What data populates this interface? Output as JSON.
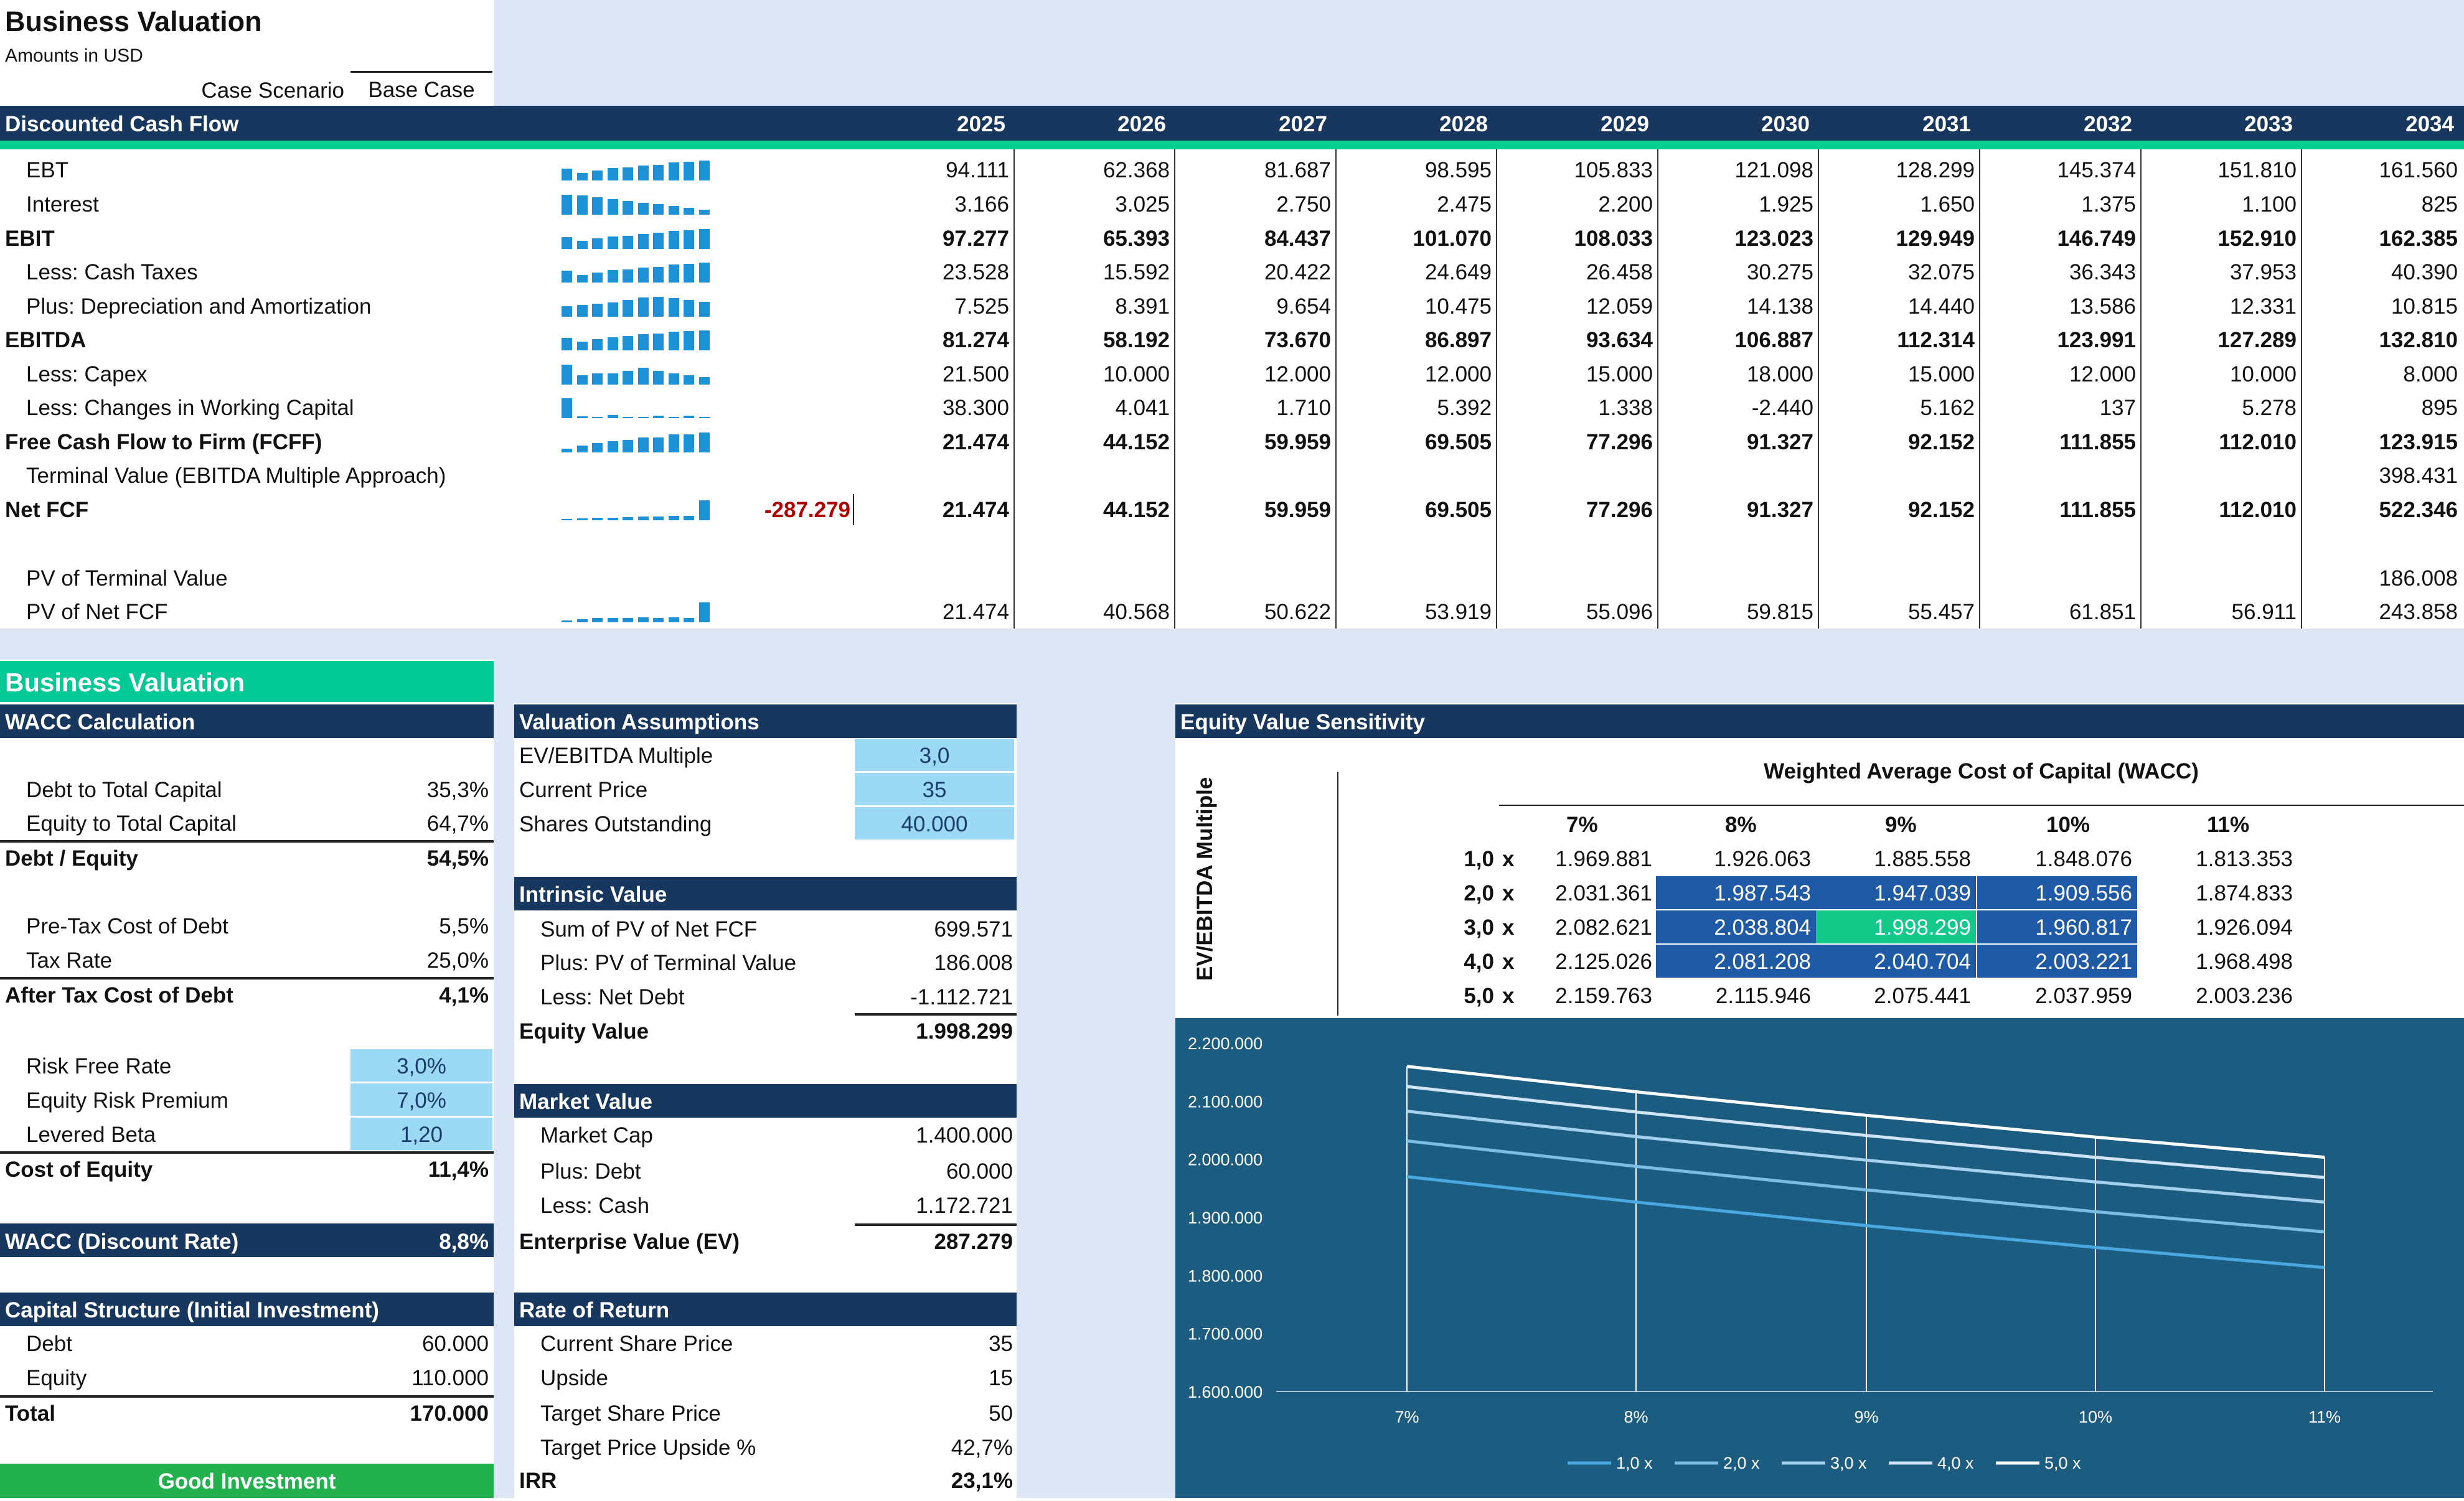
{
  "header": {
    "title": "Business Valuation",
    "subtitle": "Amounts in USD",
    "case_label": "Case Scenario",
    "case_value": "Base Case"
  },
  "dcf": {
    "title": "Discounted Cash Flow",
    "years": [
      "2025",
      "2026",
      "2027",
      "2028",
      "2029",
      "2030",
      "2031",
      "2032",
      "2033",
      "2034"
    ],
    "rows": [
      {
        "label": "EBT",
        "bold": false,
        "indent": true,
        "initial": "",
        "values": [
          "94.111",
          "62.368",
          "81.687",
          "98.595",
          "105.833",
          "121.098",
          "128.299",
          "145.374",
          "151.810",
          "161.560"
        ],
        "spark": [
          94111,
          62368,
          81687,
          98595,
          105833,
          121098,
          128299,
          145374,
          151810,
          161560
        ]
      },
      {
        "label": "Interest",
        "bold": false,
        "indent": true,
        "initial": "",
        "values": [
          "3.166",
          "3.025",
          "2.750",
          "2.475",
          "2.200",
          "1.925",
          "1.650",
          "1.375",
          "1.100",
          "825"
        ],
        "spark": [
          3166,
          3025,
          2750,
          2475,
          2200,
          1925,
          1650,
          1375,
          1100,
          825
        ]
      },
      {
        "label": "EBIT",
        "bold": true,
        "indent": false,
        "initial": "",
        "values": [
          "97.277",
          "65.393",
          "84.437",
          "101.070",
          "108.033",
          "123.023",
          "129.949",
          "146.749",
          "152.910",
          "162.385"
        ],
        "spark": [
          97277,
          65393,
          84437,
          101070,
          108033,
          123023,
          129949,
          146749,
          152910,
          162385
        ]
      },
      {
        "label": "Less: Cash Taxes",
        "bold": false,
        "indent": true,
        "initial": "",
        "values": [
          "23.528",
          "15.592",
          "20.422",
          "24.649",
          "26.458",
          "30.275",
          "32.075",
          "36.343",
          "37.953",
          "40.390"
        ],
        "spark": [
          23528,
          15592,
          20422,
          24649,
          26458,
          30275,
          32075,
          36343,
          37953,
          40390
        ]
      },
      {
        "label": "Plus: Depreciation and Amortization",
        "bold": false,
        "indent": true,
        "initial": "",
        "values": [
          "7.525",
          "8.391",
          "9.654",
          "10.475",
          "12.059",
          "14.138",
          "14.440",
          "13.586",
          "12.331",
          "10.815"
        ],
        "spark": [
          7525,
          8391,
          9654,
          10475,
          12059,
          14138,
          14440,
          13586,
          12331,
          10815
        ]
      },
      {
        "label": "EBITDA",
        "bold": true,
        "indent": false,
        "initial": "",
        "values": [
          "81.274",
          "58.192",
          "73.670",
          "86.897",
          "93.634",
          "106.887",
          "112.314",
          "123.991",
          "127.289",
          "132.810"
        ],
        "spark": [
          81274,
          58192,
          73670,
          86897,
          93634,
          106887,
          112314,
          123991,
          127289,
          132810
        ]
      },
      {
        "label": "Less: Capex",
        "bold": false,
        "indent": true,
        "initial": "",
        "values": [
          "21.500",
          "10.000",
          "12.000",
          "12.000",
          "15.000",
          "18.000",
          "15.000",
          "12.000",
          "10.000",
          "8.000"
        ],
        "spark": [
          21500,
          10000,
          12000,
          12000,
          15000,
          18000,
          15000,
          12000,
          10000,
          8000
        ]
      },
      {
        "label": "Less: Changes in Working Capital",
        "bold": false,
        "indent": true,
        "initial": "",
        "values": [
          "38.300",
          "4.041",
          "1.710",
          "5.392",
          "1.338",
          "-2.440",
          "5.162",
          "137",
          "5.278",
          "895"
        ],
        "spark": [
          38300,
          4041,
          1710,
          5392,
          1338,
          -2440,
          5162,
          137,
          5278,
          895
        ]
      },
      {
        "label": "Free Cash Flow to Firm (FCFF)",
        "bold": true,
        "indent": false,
        "initial": "",
        "values": [
          "21.474",
          "44.152",
          "59.959",
          "69.505",
          "77.296",
          "91.327",
          "92.152",
          "111.855",
          "112.010",
          "123.915"
        ],
        "spark": [
          21474,
          44152,
          59959,
          69505,
          77296,
          91327,
          92152,
          111855,
          112010,
          123915
        ]
      },
      {
        "label": "Terminal Value (EBITDA Multiple Approach)",
        "bold": false,
        "indent": true,
        "initial": "",
        "values": [
          "",
          "",
          "",
          "",
          "",
          "",
          "",
          "",
          "",
          "398.431"
        ],
        "spark": null
      },
      {
        "label": "Net FCF",
        "bold": true,
        "indent": false,
        "initial": "-287.279",
        "values": [
          "21.474",
          "44.152",
          "59.959",
          "69.505",
          "77.296",
          "91.327",
          "92.152",
          "111.855",
          "112.010",
          "522.346"
        ],
        "spark": [
          21474,
          44152,
          59959,
          69505,
          77296,
          91327,
          92152,
          111855,
          112010,
          522346
        ]
      },
      {
        "label": "",
        "bold": false,
        "indent": false,
        "initial": "",
        "values": [
          "",
          "",
          "",
          "",
          "",
          "",
          "",
          "",
          "",
          ""
        ],
        "spark": null
      },
      {
        "label": "PV of Terminal Value",
        "bold": false,
        "indent": true,
        "initial": "",
        "values": [
          "",
          "",
          "",
          "",
          "",
          "",
          "",
          "",
          "",
          "186.008"
        ],
        "spark": null
      },
      {
        "label": "PV of Net FCF",
        "bold": false,
        "indent": true,
        "initial": "",
        "values": [
          "21.474",
          "40.568",
          "50.622",
          "53.919",
          "55.096",
          "59.815",
          "55.457",
          "61.851",
          "56.911",
          "243.858"
        ],
        "spark": [
          21474,
          40568,
          50622,
          53919,
          55096,
          59815,
          55457,
          61851,
          56911,
          243858
        ]
      }
    ]
  },
  "section_title": "Business Valuation",
  "wacc": {
    "title": "WACC Calculation",
    "debt_to_capital": {
      "label": "Debt to Total Capital",
      "value": "35,3%"
    },
    "equity_to_capital": {
      "label": "Equity to Total Capital",
      "value": "64,7%"
    },
    "debt_equity": {
      "label": "Debt / Equity",
      "value": "54,5%"
    },
    "pretax_cost_debt": {
      "label": "Pre-Tax Cost of Debt",
      "value": "5,5%"
    },
    "tax_rate": {
      "label": "Tax Rate",
      "value": "25,0%"
    },
    "after_tax_cost_debt": {
      "label": "After Tax Cost of Debt",
      "value": "4,1%"
    },
    "risk_free": {
      "label": "Risk Free Rate",
      "value": "3,0%"
    },
    "erp": {
      "label": "Equity Risk Premium",
      "value": "7,0%"
    },
    "beta": {
      "label": "Levered Beta",
      "value": "1,20"
    },
    "cost_equity": {
      "label": "Cost of Equity",
      "value": "11,4%"
    },
    "wacc_rate": {
      "label": "WACC (Discount Rate)",
      "value": "8,8%"
    }
  },
  "capital": {
    "title": "Capital Structure (Initial Investment)",
    "debt": {
      "label": "Debt",
      "value": "60.000"
    },
    "equity": {
      "label": "Equity",
      "value": "110.000"
    },
    "total": {
      "label": "Total",
      "value": "170.000"
    },
    "verdict": "Good Investment"
  },
  "assumptions": {
    "title": "Valuation Assumptions",
    "multiple": {
      "label": "EV/EBITDA Multiple",
      "value": "3,0"
    },
    "price": {
      "label": "Current Price",
      "value": "35"
    },
    "shares": {
      "label": "Shares Outstanding",
      "value": "40.000"
    }
  },
  "intrinsic": {
    "title": "Intrinsic Value",
    "sum_pv": {
      "label": "Sum of PV of Net FCF",
      "value": "699.571"
    },
    "pv_tv": {
      "label": "Plus: PV of Terminal Value",
      "value": "186.008"
    },
    "net_debt": {
      "label": "Less: Net Debt",
      "value": "-1.112.721"
    },
    "equity_value": {
      "label": "Equity Value",
      "value": "1.998.299"
    }
  },
  "market": {
    "title": "Market Value",
    "cap": {
      "label": "Market Cap",
      "value": "1.400.000"
    },
    "debt": {
      "label": "Plus: Debt",
      "value": "60.000"
    },
    "cash": {
      "label": "Less: Cash",
      "value": "1.172.721"
    },
    "ev": {
      "label": "Enterprise Value (EV)",
      "value": "287.279"
    }
  },
  "returns": {
    "title": "Rate of Return",
    "current": {
      "label": "Current Share Price",
      "value": "35"
    },
    "upside": {
      "label": "Upside",
      "value": "15"
    },
    "target": {
      "label": "Target Share Price",
      "value": "50"
    },
    "target_pct": {
      "label": "Target Price Upside %",
      "value": "42,7%"
    },
    "irr": {
      "label": "IRR",
      "value": "23,1%"
    }
  },
  "sensitivity": {
    "title": "Equity Value Sensitivity",
    "col_title": "Weighted Average Cost of Capital (WACC)",
    "row_title": "EV/EBITDA Multiple",
    "waccs": [
      "7%",
      "8%",
      "9%",
      "10%",
      "11%"
    ],
    "multiples": [
      "1,0",
      "2,0",
      "3,0",
      "4,0",
      "5,0"
    ],
    "x_suffix": "x",
    "grid": [
      [
        "1.969.881",
        "1.926.063",
        "1.885.558",
        "1.848.076",
        "1.813.353"
      ],
      [
        "2.031.361",
        "1.987.543",
        "1.947.039",
        "1.909.556",
        "1.874.833"
      ],
      [
        "2.082.621",
        "2.038.804",
        "1.998.299",
        "1.960.817",
        "1.926.094"
      ],
      [
        "2.125.026",
        "2.081.208",
        "2.040.704",
        "2.003.221",
        "1.968.498"
      ],
      [
        "2.159.763",
        "2.115.946",
        "2.075.441",
        "2.037.959",
        "2.003.236"
      ]
    ]
  },
  "chart_data": {
    "type": "line",
    "categories": [
      "7%",
      "8%",
      "9%",
      "10%",
      "11%"
    ],
    "series": [
      {
        "name": "1,0 x",
        "values": [
          1969881,
          1926063,
          1885558,
          1848076,
          1813353
        ]
      },
      {
        "name": "2,0 x",
        "values": [
          2031361,
          1987543,
          1947039,
          1909556,
          1874833
        ]
      },
      {
        "name": "3,0 x",
        "values": [
          2082621,
          2038804,
          1998299,
          1960817,
          1926094
        ]
      },
      {
        "name": "4,0 x",
        "values": [
          2125026,
          2081208,
          2040704,
          2003221,
          1968498
        ]
      },
      {
        "name": "5,0 x",
        "values": [
          2159763,
          2115946,
          2075441,
          2037959,
          2003236
        ]
      }
    ],
    "y_ticks": [
      "2.200.000",
      "2.100.000",
      "2.000.000",
      "1.900.000",
      "1.800.000",
      "1.700.000",
      "1.600.000"
    ],
    "ylim": [
      1600000,
      2200000
    ],
    "series_colors": [
      "#4aa8e0",
      "#7cbde6",
      "#a6d1ee",
      "#cfe5f5",
      "#ffffff"
    ],
    "background": "#1b5c80",
    "legend": "bottom"
  }
}
